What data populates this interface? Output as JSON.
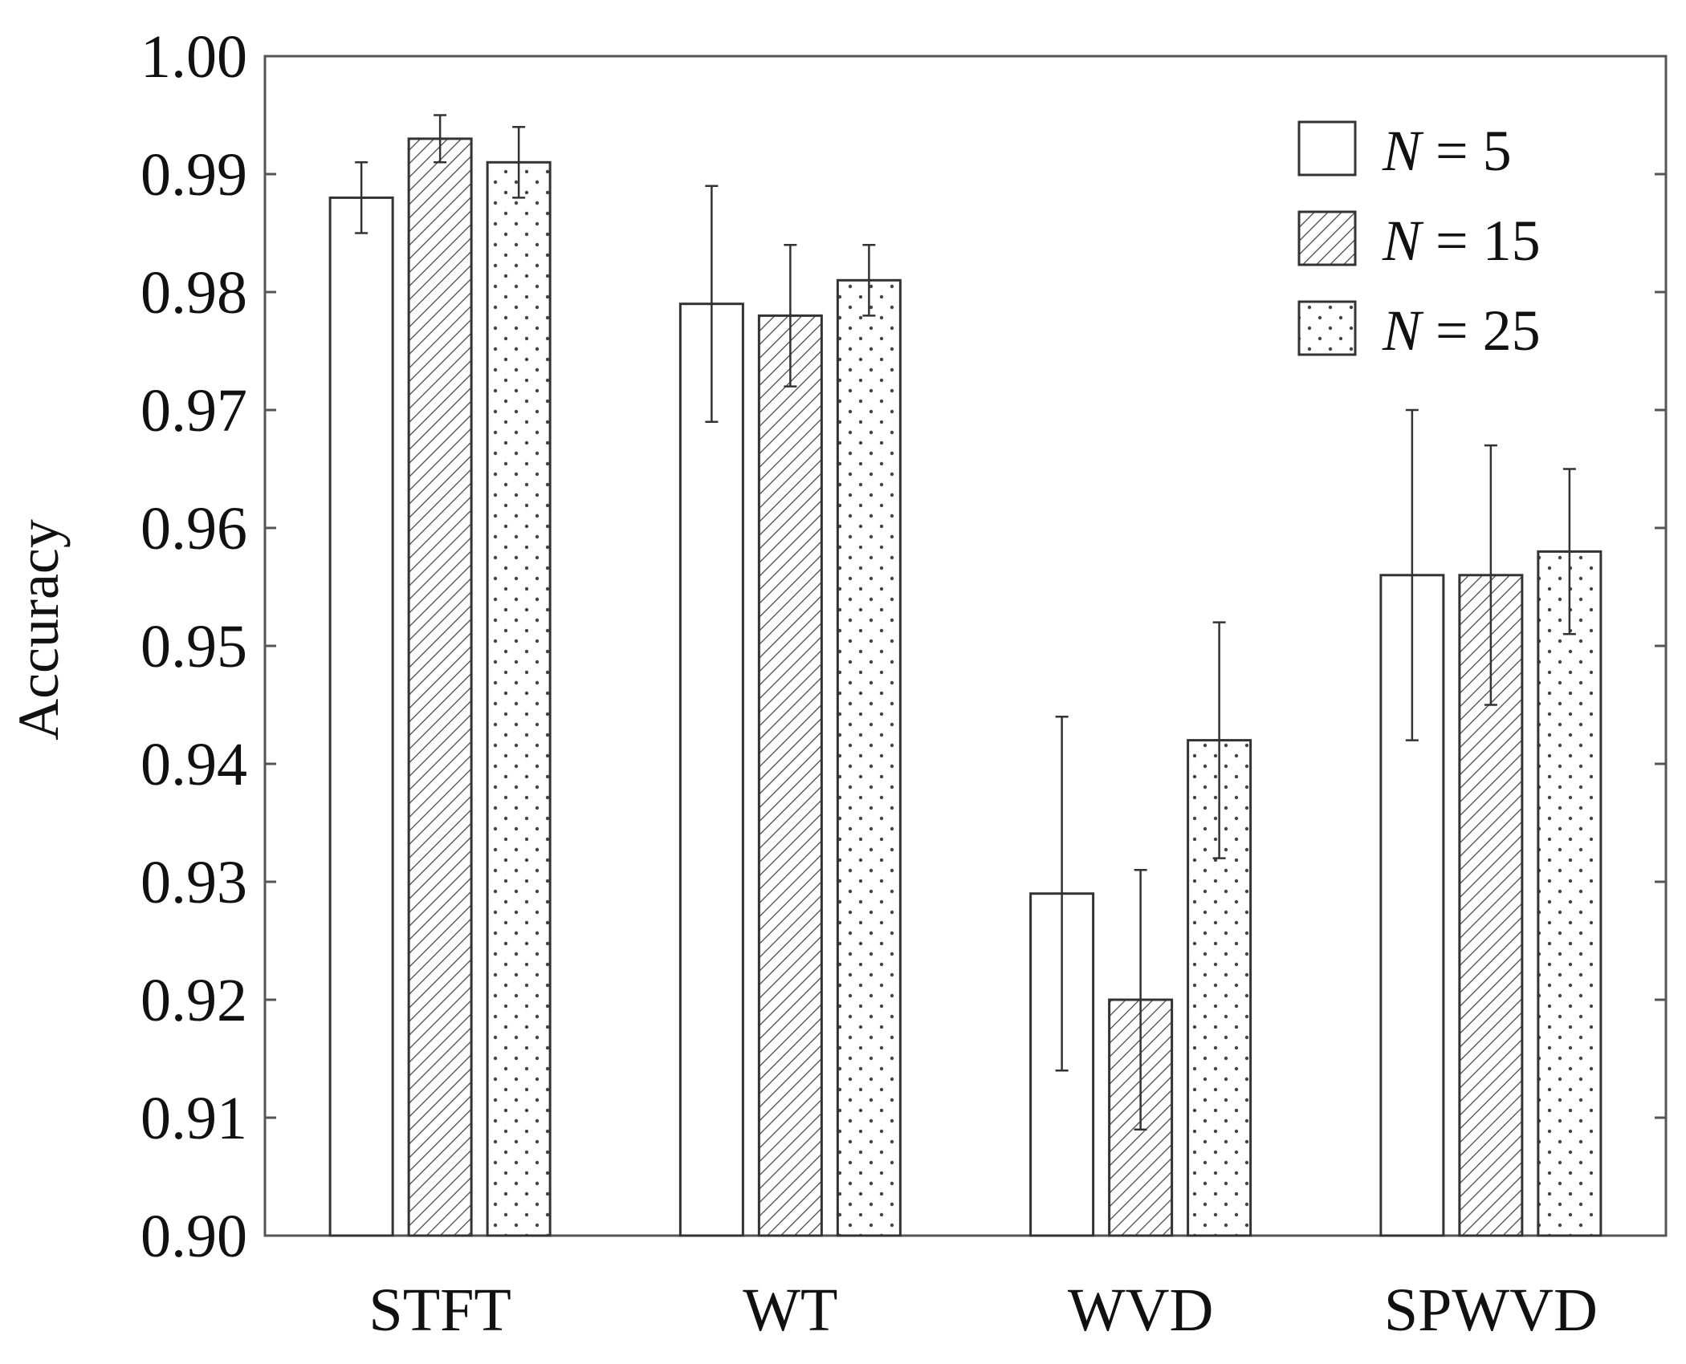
{
  "chart_data": {
    "type": "bar",
    "title": "",
    "xlabel": "",
    "ylabel": "Accuracy",
    "ylim": [
      0.9,
      1.0
    ],
    "yticks": [
      "0.90",
      "0.91",
      "0.92",
      "0.93",
      "0.94",
      "0.95",
      "0.96",
      "0.97",
      "0.98",
      "0.99",
      "1.00"
    ],
    "categories": [
      "STFT",
      "WT",
      "WVD",
      "SPWVD"
    ],
    "legend_position": "top-right",
    "series": [
      {
        "name": "N = 5",
        "var": "N",
        "rest": " = 5",
        "pattern": "empty",
        "values": [
          0.988,
          0.979,
          0.929,
          0.956
        ],
        "err_low": [
          0.985,
          0.969,
          0.914,
          0.942
        ],
        "err_high": [
          0.991,
          0.989,
          0.944,
          0.97
        ]
      },
      {
        "name": "N = 15",
        "var": "N",
        "rest": " = 15",
        "pattern": "hatch",
        "values": [
          0.993,
          0.978,
          0.92,
          0.956
        ],
        "err_low": [
          0.991,
          0.972,
          0.909,
          0.945
        ],
        "err_high": [
          0.995,
          0.984,
          0.931,
          0.967
        ]
      },
      {
        "name": "N = 25",
        "var": "N",
        "rest": " = 25",
        "pattern": "dots",
        "values": [
          0.991,
          0.981,
          0.942,
          0.958
        ],
        "err_low": [
          0.988,
          0.978,
          0.932,
          0.951
        ],
        "err_high": [
          0.994,
          0.984,
          0.952,
          0.965
        ]
      }
    ],
    "colors": {
      "axis": "#555555",
      "bar_stroke": "#333333",
      "error_bar": "#333333",
      "hatch": "#444444",
      "dots": "#444444"
    }
  }
}
